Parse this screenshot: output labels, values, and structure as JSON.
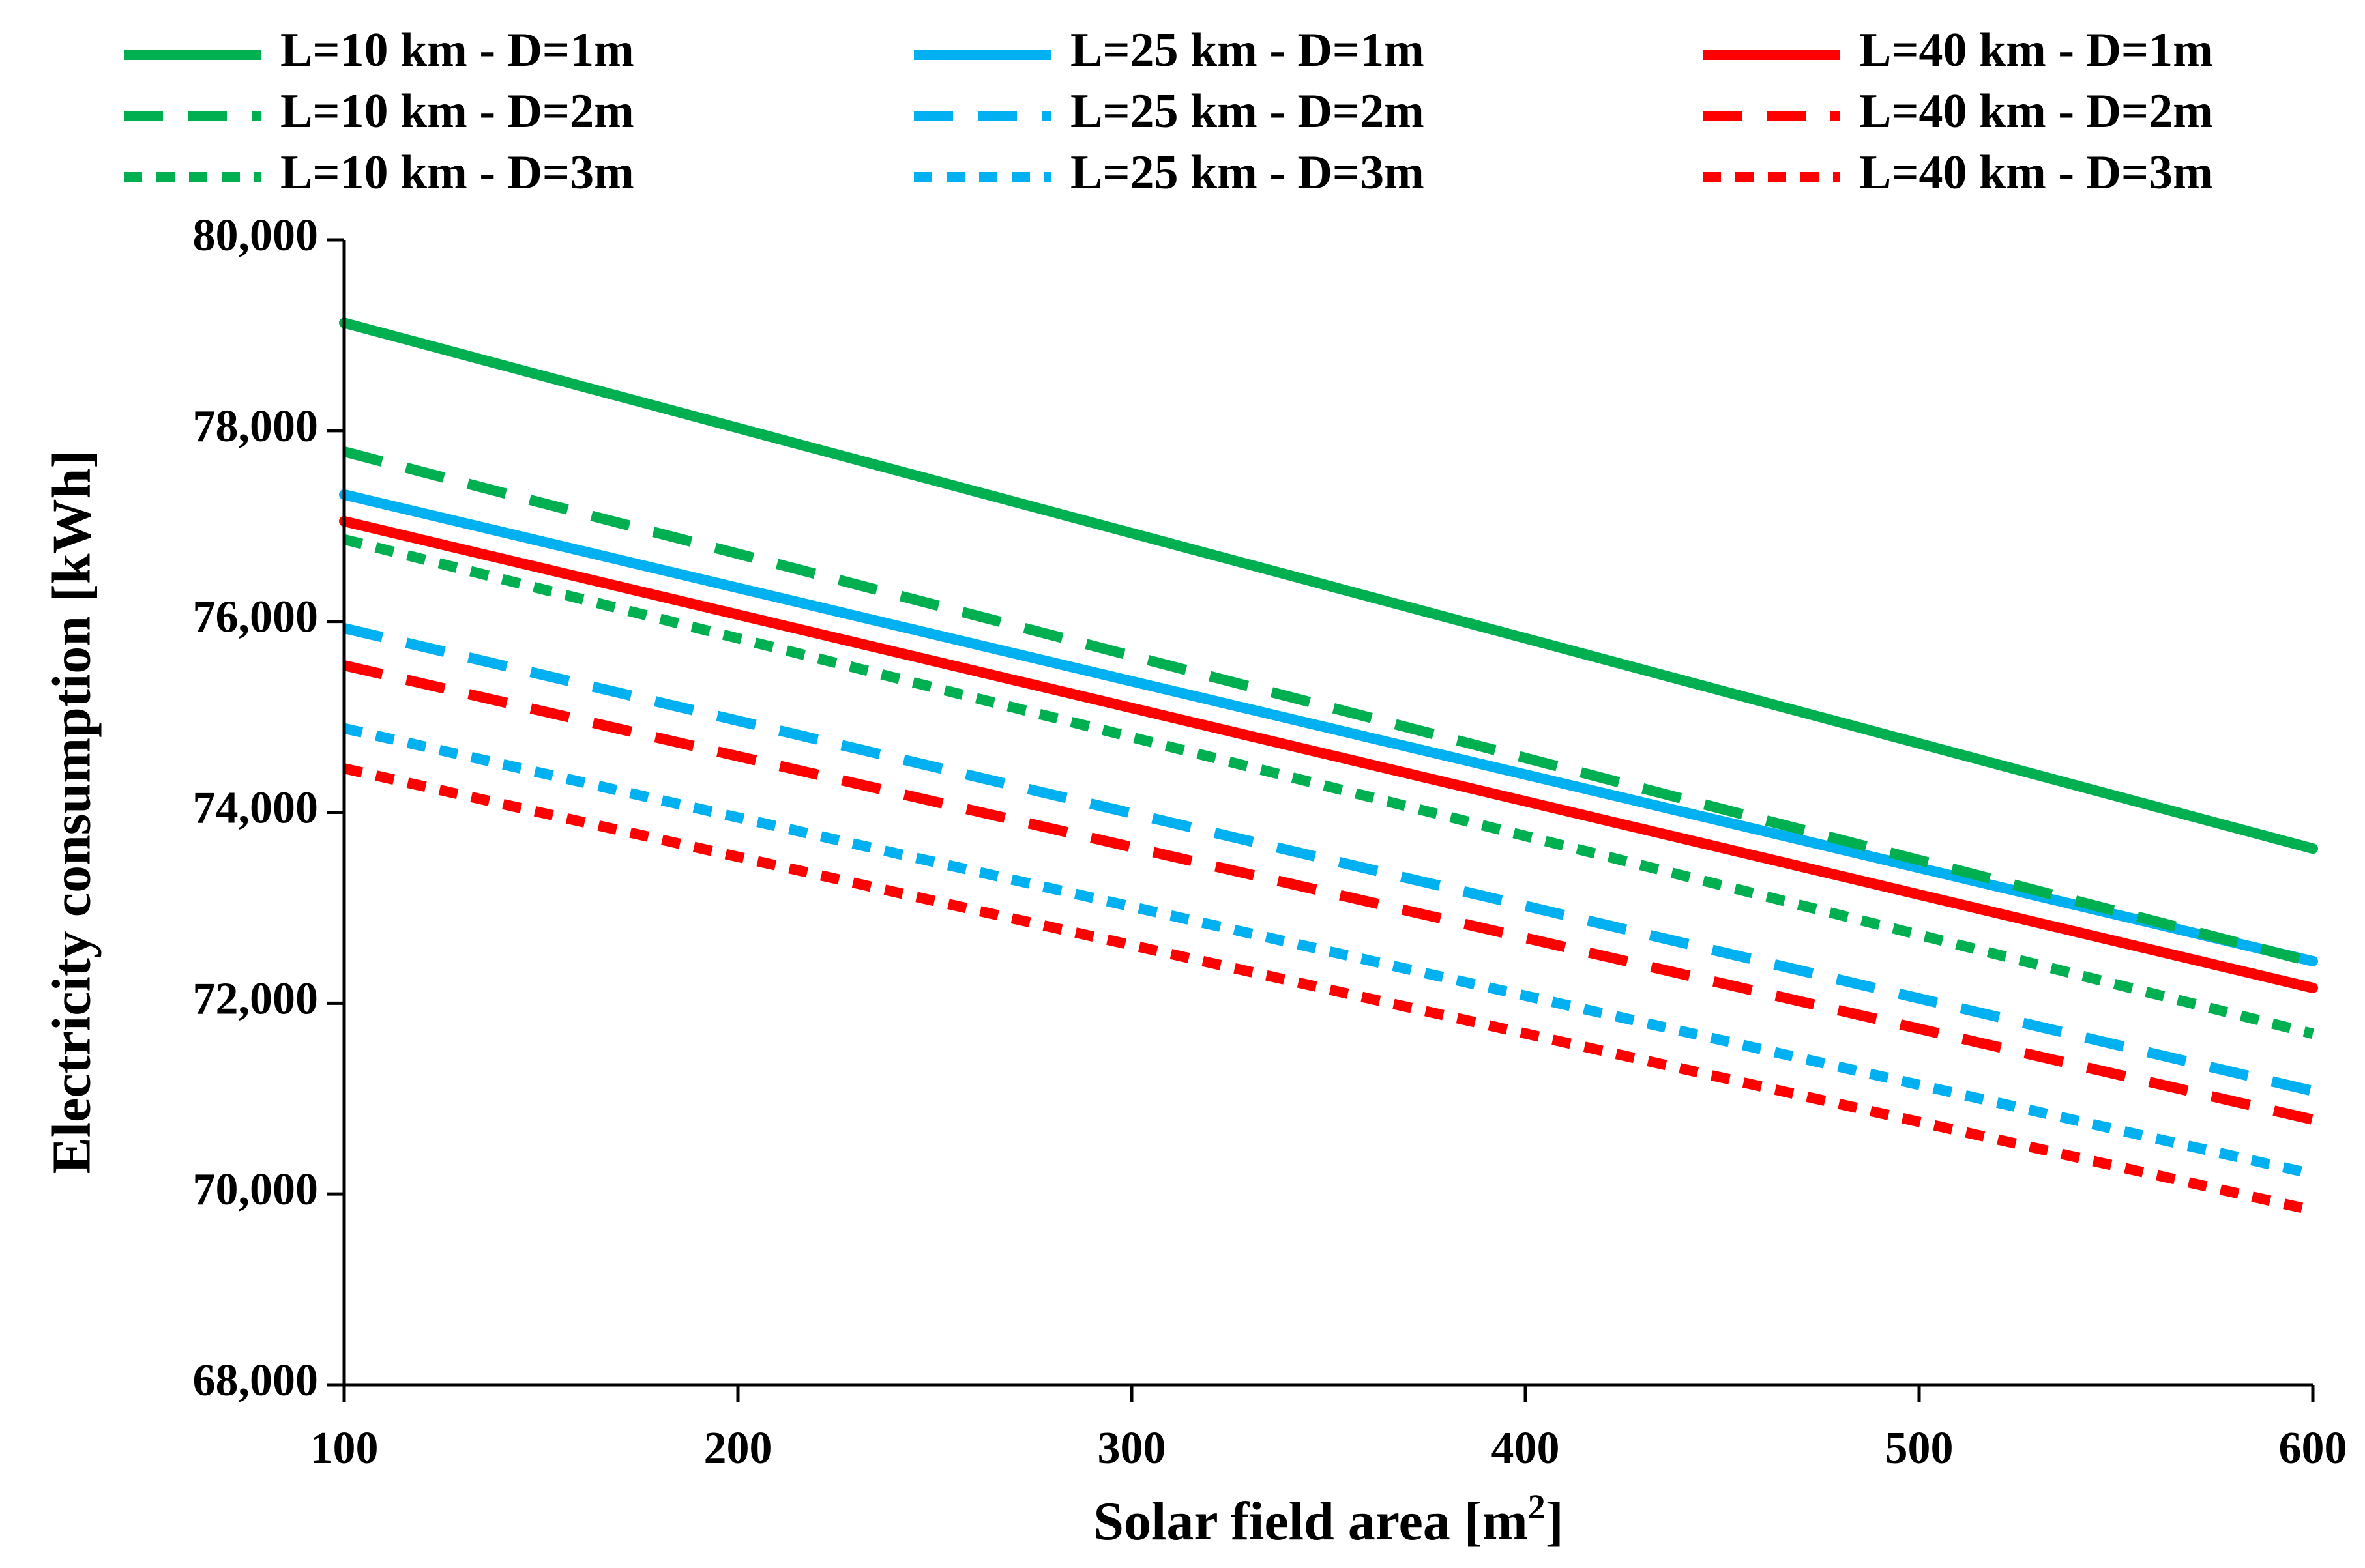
{
  "chart_data": {
    "type": "line",
    "title": "",
    "xlabel": "Solar field area [m",
    "xlabel_sup": "2",
    "xlabel_end": "]",
    "ylabel": "Electricity consumption [kWh]",
    "xlim": [
      100,
      600
    ],
    "ylim": [
      68000,
      80000
    ],
    "xticks": [
      100,
      200,
      300,
      400,
      500,
      600
    ],
    "yticks": [
      68000,
      70000,
      72000,
      74000,
      76000,
      78000,
      80000
    ],
    "xtick_labels": [
      "100",
      "200",
      "300",
      "400",
      "500",
      "600"
    ],
    "ytick_labels": [
      "68,000",
      "70,000",
      "72,000",
      "74,000",
      "76,000",
      "78,000",
      "80,000"
    ],
    "grid": false,
    "legend_position": "top",
    "series": [
      {
        "name": "L=10 km - D=1m",
        "color": "#00B050",
        "style": "solid",
        "x": [
          100,
          600
        ],
        "values": [
          79130,
          73620
        ]
      },
      {
        "name": "L=25 km - D=1m",
        "color": "#00B0F0",
        "style": "solid",
        "x": [
          100,
          600
        ],
        "values": [
          77330,
          72440
        ]
      },
      {
        "name": "L=40 km - D=1m",
        "color": "#FF0000",
        "style": "solid",
        "x": [
          100,
          600
        ],
        "values": [
          77050,
          72160
        ]
      },
      {
        "name": "L=10 km - D=2m",
        "color": "#00B050",
        "style": "dash",
        "x": [
          100,
          600
        ],
        "values": [
          77780,
          72430
        ]
      },
      {
        "name": "L=25 km - D=2m",
        "color": "#00B0F0",
        "style": "dash",
        "x": [
          100,
          600
        ],
        "values": [
          75930,
          71080
        ]
      },
      {
        "name": "L=40 km - D=2m",
        "color": "#FF0000",
        "style": "dash",
        "x": [
          100,
          600
        ],
        "values": [
          75540,
          70780
        ]
      },
      {
        "name": "L=10 km - D=3m",
        "color": "#00B050",
        "style": "dot",
        "x": [
          100,
          600
        ],
        "values": [
          76860,
          71680
        ]
      },
      {
        "name": "L=25 km - D=3m",
        "color": "#00B0F0",
        "style": "dot",
        "x": [
          100,
          600
        ],
        "values": [
          74880,
          70210
        ]
      },
      {
        "name": "L=40 km - D=3m",
        "color": "#FF0000",
        "style": "dot",
        "x": [
          100,
          600
        ],
        "values": [
          74460,
          69830
        ]
      }
    ]
  }
}
